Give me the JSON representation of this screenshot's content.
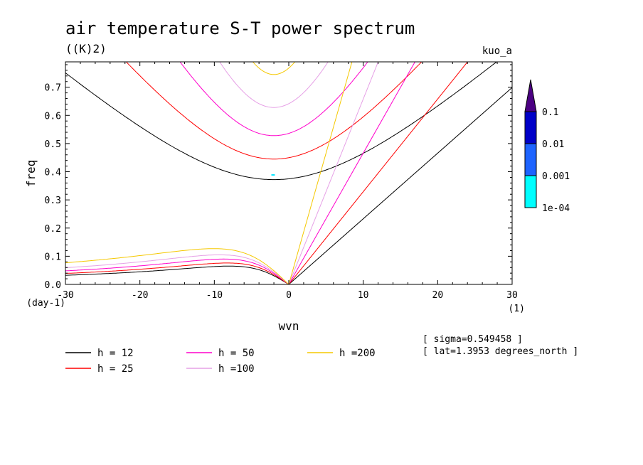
{
  "chart_data": {
    "type": "line",
    "title": "air temperature S-T power spectrum",
    "units": "((K)2)",
    "tag": "kuo_a",
    "xlabel": "wvn",
    "ylabel": "freq",
    "x_unit": "(1)",
    "y_unit": "(day-1)",
    "xlim": [
      -30,
      30
    ],
    "ylim": [
      0,
      0.79
    ],
    "x_ticks": [
      -30,
      -20,
      -10,
      0,
      10,
      20,
      30
    ],
    "x_tick_labels": [
      "-30",
      "-20",
      "-10",
      "0",
      "10",
      "20",
      "30"
    ],
    "y_ticks": [
      0,
      0.1,
      0.2,
      0.3,
      0.4,
      0.5,
      0.6,
      0.7
    ],
    "y_tick_labels": [
      "0.0",
      "0.1",
      "0.2",
      "0.3",
      "0.4",
      "0.5",
      "0.6",
      "0.7"
    ],
    "series": [
      {
        "name": "h = 12",
        "color": "#000000",
        "ig_min_freq": 0.372,
        "kelvin_slope": 0.0233,
        "rossby_peak": 0.065
      },
      {
        "name": "h = 25",
        "color": "#ff0000",
        "ig_min_freq": 0.445,
        "kelvin_slope": 0.0329,
        "rossby_peak": 0.076
      },
      {
        "name": "h = 50",
        "color": "#ff00cc",
        "ig_min_freq": 0.528,
        "kelvin_slope": 0.0466,
        "rossby_peak": 0.09
      },
      {
        "name": "h =100",
        "color": "#e6a0e6",
        "ig_min_freq": 0.628,
        "kelvin_slope": 0.0658,
        "rossby_peak": 0.105
      },
      {
        "name": "h =200",
        "color": "#f5c800",
        "ig_min_freq": 0.745,
        "kelvin_slope": 0.0931,
        "rossby_peak": 0.127
      }
    ],
    "colorbar": {
      "labels": [
        "0.1",
        "0.01",
        "0.001",
        "1e-04"
      ],
      "colors": [
        "#4b0082",
        "#0000c8",
        "#1e64ff",
        "#00ffff"
      ]
    },
    "annotations": [
      "[ sigma=0.549458 ]",
      "[ lat=1.3953 degrees_north ]"
    ]
  }
}
